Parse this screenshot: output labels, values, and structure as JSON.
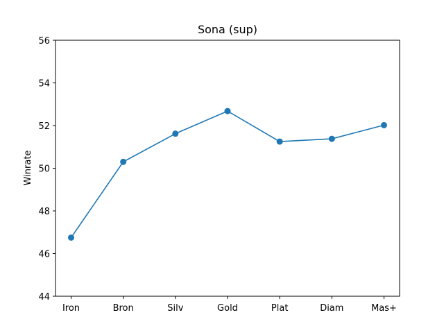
{
  "chart_data": {
    "type": "line",
    "title": "Sona (sup)",
    "xlabel": "",
    "ylabel": "Winrate",
    "categories": [
      "Iron",
      "Bron",
      "Silv",
      "Gold",
      "Plat",
      "Diam",
      "Mas+"
    ],
    "series": [
      {
        "values": [
          46.75,
          50.3,
          51.62,
          52.68,
          51.25,
          51.38,
          52.02
        ],
        "color": "#1f77b4"
      }
    ],
    "ylim": [
      44,
      56
    ],
    "yticks": [
      44,
      46,
      48,
      50,
      52,
      54,
      56
    ],
    "grid": false,
    "marker": "circle"
  }
}
